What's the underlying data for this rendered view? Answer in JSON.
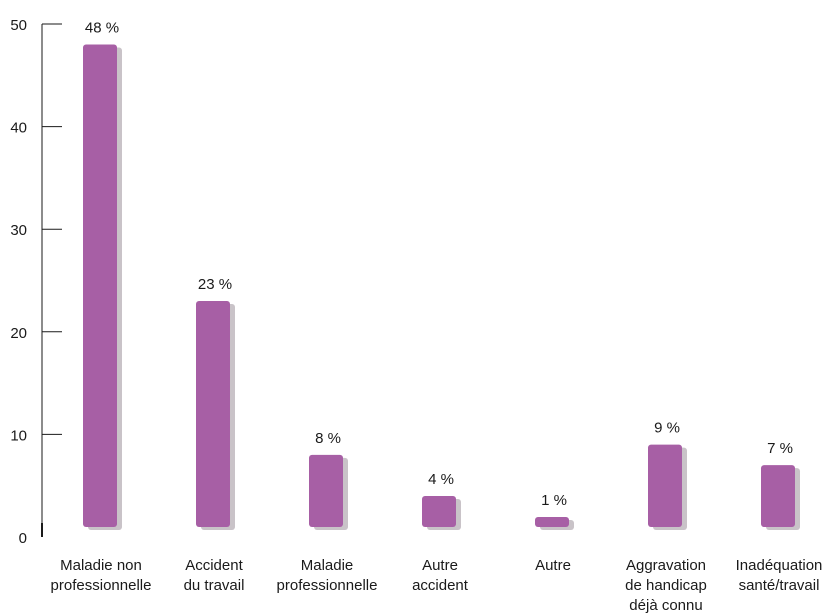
{
  "chart_data": {
    "type": "bar",
    "categories": [
      [
        "Maladie non",
        "professionnelle"
      ],
      [
        "Accident",
        "du travail"
      ],
      [
        "Maladie",
        "professionnelle"
      ],
      [
        "Autre",
        "accident"
      ],
      [
        "Autre"
      ],
      [
        "Aggravation",
        "de handicap",
        "déjà connu"
      ],
      [
        "Inadéquation",
        "santé/travail"
      ]
    ],
    "values": [
      48,
      23,
      8,
      4,
      1,
      9,
      7
    ],
    "data_labels": [
      "48 %",
      "23 %",
      "8 %",
      "4 %",
      "1 %",
      "9 %",
      "7 %"
    ],
    "y_ticks": [
      0,
      10,
      20,
      30,
      40,
      50
    ],
    "ylim": [
      0,
      50
    ],
    "title": "",
    "xlabel": "",
    "ylabel": "",
    "grid": false,
    "colors": {
      "bar": "#a75fa5",
      "shadow": "#c9c3c8",
      "axis": "#1a1a1a"
    }
  }
}
